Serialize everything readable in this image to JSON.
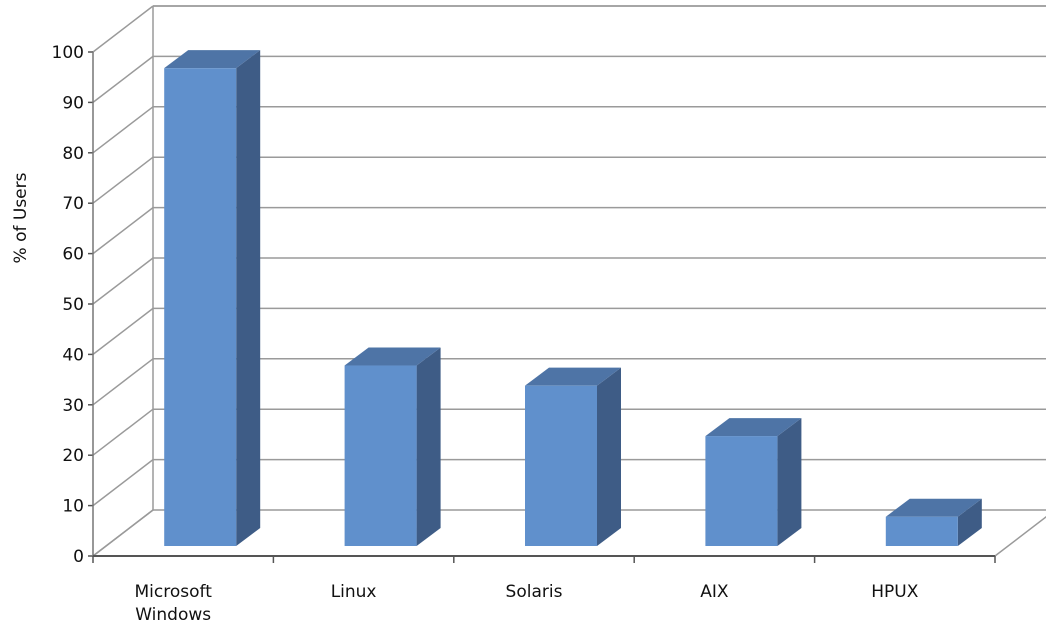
{
  "chart_data": {
    "type": "bar",
    "title": "",
    "xlabel": "",
    "ylabel": "% of Users",
    "categories": [
      "Microsoft Windows",
      "Linux",
      "Solaris",
      "AIX",
      "HPUX"
    ],
    "values": [
      96,
      37,
      33,
      23,
      7
    ],
    "ylim": [
      0,
      100
    ],
    "yticks": [
      "0",
      "10",
      "20",
      "30",
      "40",
      "50",
      "60",
      "70",
      "80",
      "90",
      "100"
    ],
    "grid": true,
    "legend": "none",
    "style": "3d-column",
    "colors": {
      "bar_front": "#6090CC",
      "bar_side": "#3E5C86",
      "bar_top": "#4E74A6",
      "gridline": "#9A9A9A"
    }
  }
}
